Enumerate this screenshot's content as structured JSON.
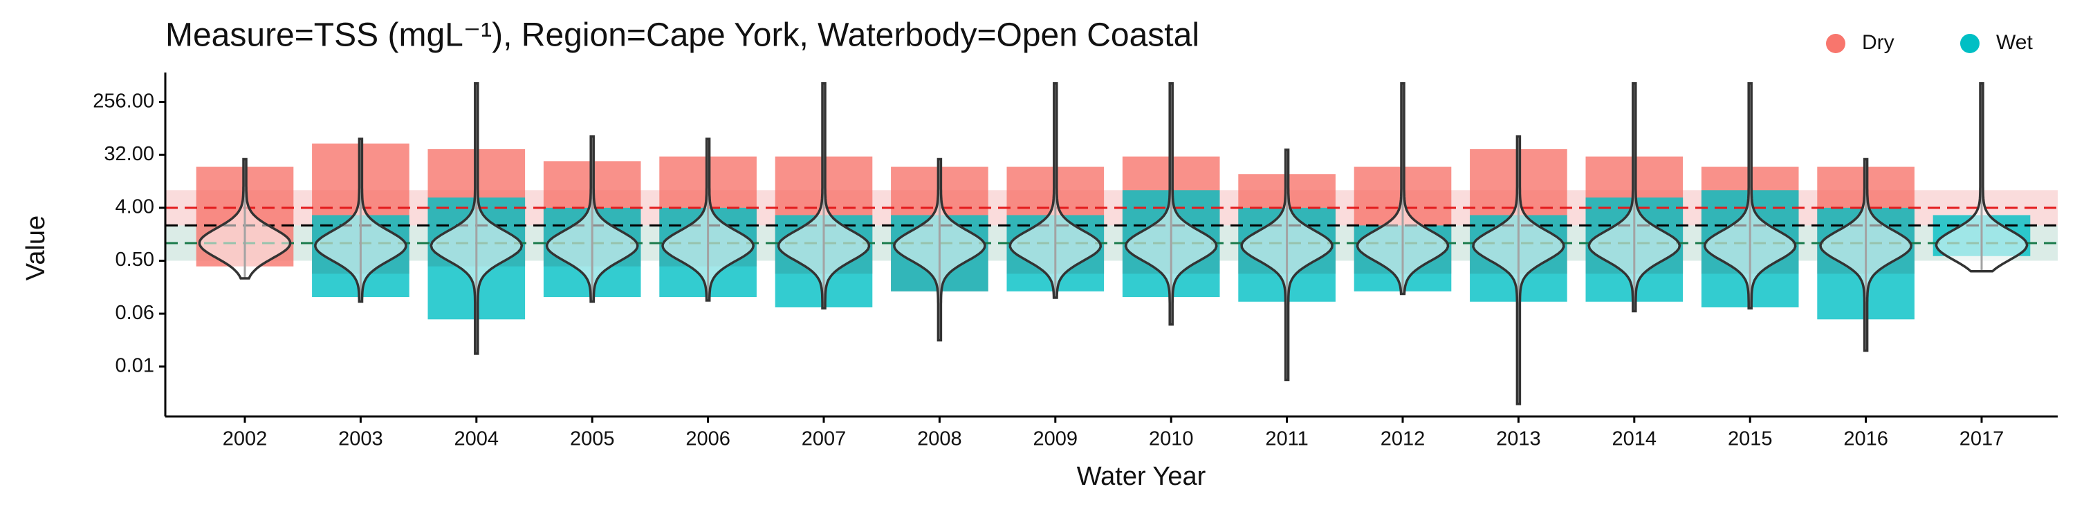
{
  "chart_data": {
    "type": "violin",
    "title": "Measure=TSS (mgL⁻¹), Region=Cape York, Waterbody=Open Coastal",
    "x_label": "Water Year",
    "y_label": "Value",
    "log_scale": "y",
    "log_base": 2,
    "categories": [
      "2002",
      "2003",
      "2004",
      "2005",
      "2006",
      "2007",
      "2008",
      "2009",
      "2010",
      "2011",
      "2012",
      "2013",
      "2014",
      "2015",
      "2016",
      "2017"
    ],
    "ylim": [
      0.0011,
      620
    ],
    "yticks": [
      {
        "value": 0.0078125,
        "label": "0.01"
      },
      {
        "value": 0.0625,
        "label": "0.06"
      },
      {
        "value": 0.5,
        "label": "0.50"
      },
      {
        "value": 4,
        "label": "4.00"
      },
      {
        "value": 32,
        "label": "32.00"
      },
      {
        "value": 256,
        "label": "256.00"
      }
    ],
    "legend_position": "top-right",
    "series": [
      {
        "name": "Dry",
        "color": "#f8766d",
        "low": [
          0.4,
          0.3,
          0.4,
          0.4,
          0.4,
          0.3,
          0.15,
          0.3,
          0.3,
          0.3,
          0.3,
          0.3,
          0.3,
          0.3,
          0.3,
          null
        ],
        "high": [
          20,
          50,
          40,
          25,
          30,
          30,
          20,
          20,
          30,
          15,
          20,
          40,
          30,
          20,
          20,
          null
        ]
      },
      {
        "name": "Wet",
        "color": "#00bfc4",
        "low": [
          null,
          0.12,
          0.05,
          0.12,
          0.12,
          0.08,
          0.15,
          0.15,
          0.12,
          0.1,
          0.15,
          0.1,
          0.1,
          0.08,
          0.05,
          0.6
        ],
        "high": [
          null,
          3,
          6,
          4,
          4,
          3,
          3,
          3,
          8,
          4,
          2,
          3,
          6,
          8,
          4,
          3
        ]
      }
    ],
    "violin_min": [
      0.25,
      0.1,
      0.013,
      0.1,
      0.105,
      0.077,
      0.022,
      0.117,
      0.041,
      0.0046,
      0.136,
      0.0018,
      0.069,
      0.077,
      0.0146,
      0.33
    ],
    "violin_median": [
      1.0,
      0.9,
      0.9,
      0.9,
      0.9,
      0.9,
      0.9,
      0.9,
      0.9,
      0.9,
      0.9,
      0.9,
      0.9,
      0.9,
      0.9,
      0.93
    ],
    "violin_max": [
      27,
      60,
      530,
      66,
      60,
      530,
      27,
      530,
      530,
      39,
      530,
      66,
      530,
      530,
      27,
      530
    ],
    "bands": [
      {
        "from": 2,
        "to": 8,
        "color": "#f8d0d0"
      },
      {
        "from": 0.5,
        "to": 2,
        "color": "#cfe6df"
      }
    ],
    "reference_lines": [
      {
        "value": 4,
        "color": "#e31a1c"
      },
      {
        "value": 2,
        "color": "#000000"
      },
      {
        "value": 1,
        "color": "#1a7a4a"
      }
    ]
  }
}
